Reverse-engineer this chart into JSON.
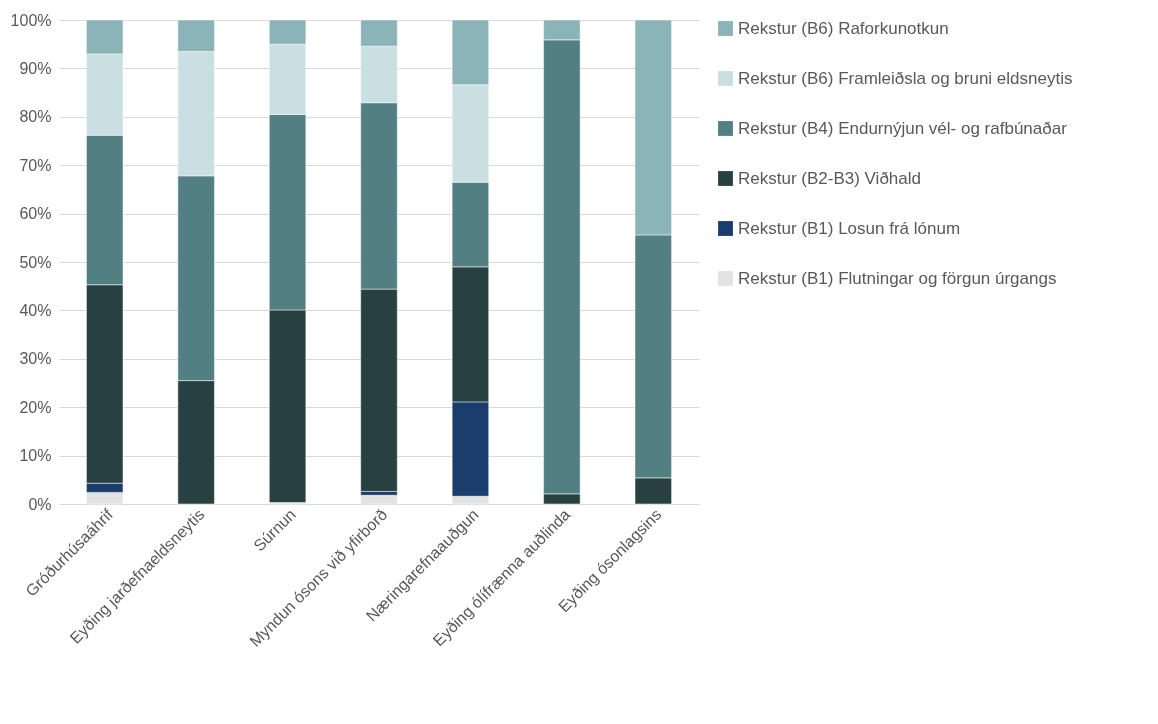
{
  "chart_data": {
    "type": "bar",
    "stacked": true,
    "categories": [
      "Gróðurhúsaáhrif",
      "Eyðing jarðefnaeldsneytis",
      "Súrnun",
      "Myndun ósons við yfirborð",
      "Næringarefnaauðgun",
      "Eyðing ólífrænna auðlinda",
      "Eyðing ósonlagsins"
    ],
    "series": [
      {
        "name": "Rekstur (B1) Flutningar og förgun úrgangs",
        "color": "#e3e3e3",
        "values": [
          2.4,
          null,
          0.3,
          1.8,
          1.6,
          null,
          null
        ]
      },
      {
        "name": "Rekstur (B1) Losun frá lónum",
        "color": "#1b3d6e",
        "values": [
          1.9,
          null,
          null,
          0.8,
          19.5,
          null,
          null
        ]
      },
      {
        "name": "Rekstur (B2-B3) Viðhald",
        "color": "#284042",
        "values": [
          41.0,
          25.5,
          39.8,
          41.8,
          27.9,
          2.1,
          5.4
        ]
      },
      {
        "name": "Rekstur (B4) Endurnýjun vél- og rafbúnaðar",
        "color": "#517f82",
        "values": [
          30.9,
          42.3,
          40.4,
          38.5,
          17.5,
          93.8,
          50.2
        ]
      },
      {
        "name": "Rekstur (B6) Framleiðsla og bruni eldsneytis",
        "color": "#cadfe1",
        "values": [
          16.8,
          25.7,
          14.5,
          11.7,
          20.1,
          null,
          null
        ]
      },
      {
        "name": "Rekstur (B6) Raforkunotkun",
        "color": "#8ab4b7",
        "values": [
          7.0,
          6.5,
          5.0,
          5.4,
          13.4,
          4.1,
          44.4
        ]
      }
    ],
    "ylim": [
      0,
      100
    ],
    "yticks": [
      {
        "value": 0,
        "label": "0%"
      },
      {
        "value": 10,
        "label": "10%"
      },
      {
        "value": 20,
        "label": "20%"
      },
      {
        "value": 30,
        "label": "30%"
      },
      {
        "value": 40,
        "label": "40%"
      },
      {
        "value": 50,
        "label": "50%"
      },
      {
        "value": 60,
        "label": "60%"
      },
      {
        "value": 70,
        "label": "70%"
      },
      {
        "value": 80,
        "label": "80%"
      },
      {
        "value": 90,
        "label": "90%"
      },
      {
        "value": 100,
        "label": "100%"
      }
    ],
    "grid": "y",
    "legend": "right"
  }
}
